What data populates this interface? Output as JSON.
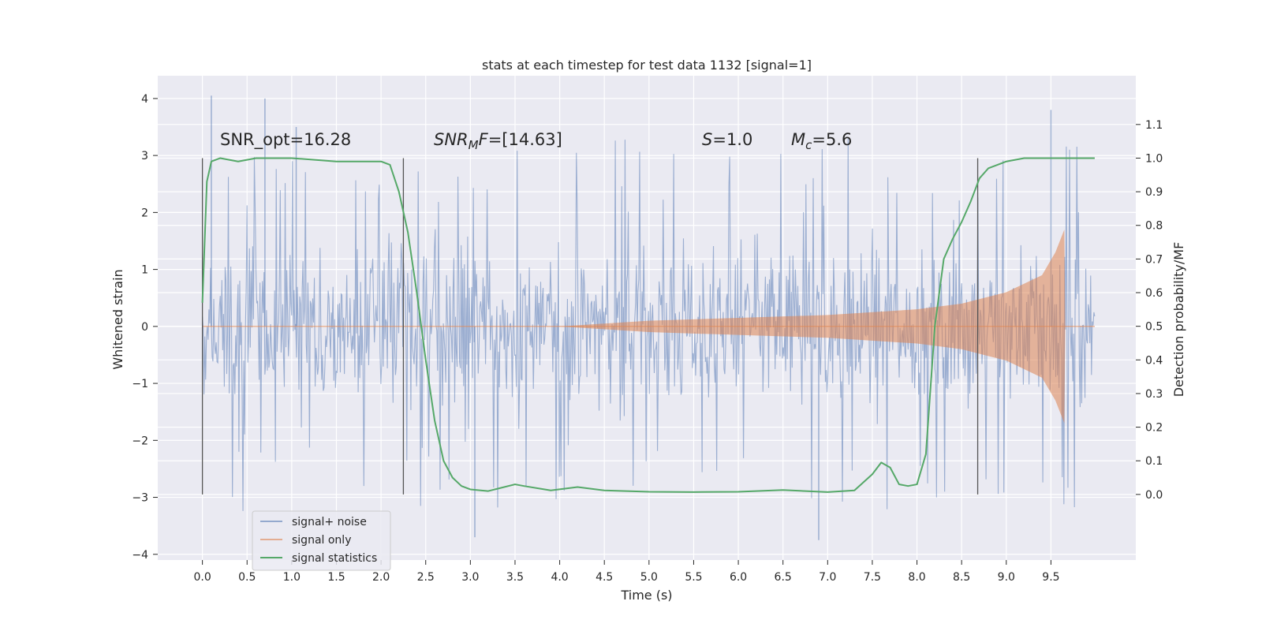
{
  "chart_data": {
    "type": "line",
    "title": "stats at each timestep for test data 1132 [signal=1]",
    "xlabel": "Time (s)",
    "ylabel_left": "Whitened strain",
    "ylabel_right": "Detection probability/MF",
    "xlim": [
      -0.5,
      10.45
    ],
    "ylim_left": [
      -4.1,
      4.4
    ],
    "ylim_right": [
      -0.195,
      1.245
    ],
    "x_ticks": [
      "0.0",
      "0.5",
      "1.0",
      "1.5",
      "2.0",
      "2.5",
      "3.0",
      "3.5",
      "4.0",
      "4.5",
      "5.0",
      "5.5",
      "6.0",
      "6.5",
      "7.0",
      "7.5",
      "8.0",
      "8.5",
      "9.0",
      "9.5"
    ],
    "y_left_ticks": [
      "4",
      "3",
      "2",
      "1",
      "0",
      "−1",
      "−2",
      "−3",
      "−4"
    ],
    "y_right_ticks": [
      "1.1",
      "1.0",
      "0.9",
      "0.8",
      "0.7",
      "0.6",
      "0.5",
      "0.4",
      "0.3",
      "0.2",
      "0.1",
      "0.0"
    ],
    "grid": true,
    "background": "#eaeaf2",
    "legend_position": "lower-left",
    "annotations": {
      "snr_opt": "SNR_opt=16.28",
      "snr_mf_main": "SNR",
      "snr_mf_sub": "M",
      "snr_mf_f": "F",
      "snr_mf_value": "=[14.63]",
      "s_var": "S",
      "s_value": "=1.0",
      "mc_var": "M",
      "mc_sub": "c",
      "mc_value": "=5.6"
    },
    "vertical_markers": [
      0.0,
      2.25,
      8.68
    ],
    "series": [
      {
        "name": "signal+ noise",
        "axis": "left",
        "color": "#4c72b0",
        "x_range": [
          0.0,
          9.99
        ],
        "envelope_typical": [
          -1.5,
          1.5
        ],
        "peaks": [
          [
            0.1,
            4.05
          ],
          [
            0.7,
            4.0
          ],
          [
            1.05,
            3.5
          ],
          [
            9.5,
            3.8
          ],
          [
            3.05,
            -3.7
          ],
          [
            6.9,
            -3.75
          ]
        ]
      },
      {
        "name": "signal only",
        "axis": "left",
        "color": "#dd8452",
        "amplitude_envelope": [
          [
            0.0,
            0.0
          ],
          [
            4.0,
            0.0
          ],
          [
            5.0,
            0.1
          ],
          [
            6.0,
            0.15
          ],
          [
            7.0,
            0.2
          ],
          [
            8.0,
            0.3
          ],
          [
            8.5,
            0.4
          ],
          [
            9.0,
            0.6
          ],
          [
            9.4,
            0.9
          ],
          [
            9.55,
            1.3
          ],
          [
            9.65,
            1.7
          ],
          [
            9.66,
            0.0
          ],
          [
            9.99,
            0.0
          ]
        ]
      },
      {
        "name": "signal statistics",
        "axis": "right",
        "color": "#55a868",
        "x": [
          0.0,
          0.05,
          0.1,
          0.2,
          0.4,
          0.6,
          1.0,
          1.5,
          2.0,
          2.1,
          2.2,
          2.3,
          2.4,
          2.5,
          2.6,
          2.7,
          2.8,
          2.9,
          3.0,
          3.2,
          3.5,
          3.6,
          3.9,
          4.2,
          4.5,
          5.0,
          5.5,
          6.0,
          6.5,
          7.0,
          7.3,
          7.5,
          7.6,
          7.7,
          7.8,
          7.9,
          8.0,
          8.1,
          8.2,
          8.3,
          8.4,
          8.5,
          8.6,
          8.7,
          8.8,
          9.0,
          9.2,
          9.5,
          9.99
        ],
        "y": [
          0.57,
          0.93,
          0.99,
          1.0,
          0.99,
          1.0,
          1.0,
          0.99,
          0.99,
          0.98,
          0.9,
          0.78,
          0.6,
          0.4,
          0.22,
          0.1,
          0.05,
          0.025,
          0.015,
          0.01,
          0.03,
          0.025,
          0.012,
          0.022,
          0.012,
          0.008,
          0.007,
          0.008,
          0.013,
          0.007,
          0.012,
          0.06,
          0.095,
          0.08,
          0.03,
          0.025,
          0.03,
          0.12,
          0.5,
          0.7,
          0.76,
          0.81,
          0.87,
          0.94,
          0.97,
          0.99,
          1.0,
          1.0,
          1.0
        ]
      }
    ]
  }
}
